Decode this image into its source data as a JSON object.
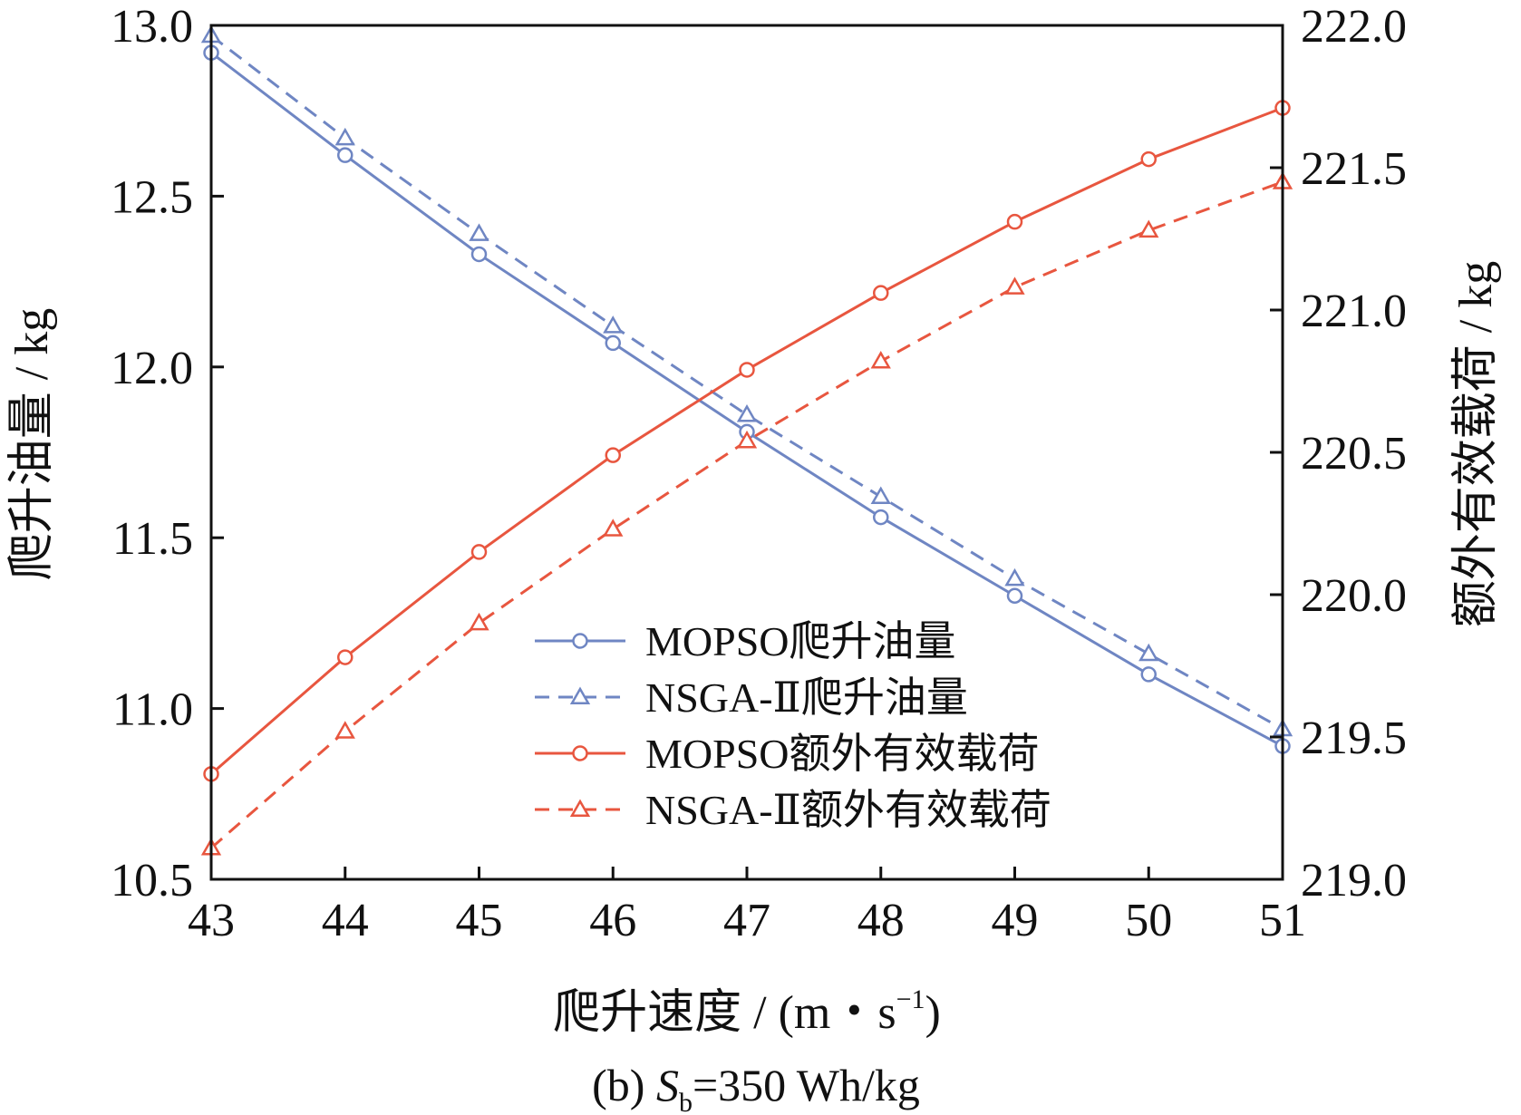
{
  "chart_data": {
    "type": "line",
    "caption": {
      "prefix": "(b) ",
      "var": "S",
      "sub": "b",
      "suffix": "=350 Wh/kg"
    },
    "xlabel": {
      "main": "爬升速度 / (m・s",
      "sup": "−1",
      "close": ")"
    },
    "ylabel_left": "爬升油量 / kg",
    "ylabel_right": "额外有效载荷 / kg",
    "x": [
      43,
      44,
      45,
      46,
      47,
      48,
      49,
      50,
      51
    ],
    "x_ticks": [
      "43",
      "44",
      "45",
      "46",
      "47",
      "48",
      "49",
      "50",
      "51"
    ],
    "xlim": [
      43,
      51
    ],
    "ylim_left": [
      10.5,
      13.0
    ],
    "ylim_right": [
      219.0,
      222.0
    ],
    "y_left_ticks": [
      "10.5",
      "11.0",
      "11.5",
      "12.0",
      "12.5",
      "13.0"
    ],
    "y_right_ticks": [
      "219.0",
      "219.5",
      "220.0",
      "220.5",
      "221.0",
      "221.5",
      "222.0"
    ],
    "legend_position": "lower-center",
    "series": [
      {
        "name": "MOPSO爬升油量",
        "axis": "left",
        "color": "#6f86c3",
        "dash": "solid",
        "marker": "circle",
        "values": [
          12.92,
          12.62,
          12.33,
          12.07,
          11.81,
          11.56,
          11.33,
          11.1,
          10.89
        ]
      },
      {
        "name": "NSGA-Ⅱ爬升油量",
        "axis": "left",
        "color": "#6f86c3",
        "dash": "dashed",
        "marker": "triangle",
        "values": [
          12.97,
          12.67,
          12.39,
          12.12,
          11.86,
          11.62,
          11.38,
          11.16,
          10.94
        ]
      },
      {
        "name": "MOPSO额外有效载荷",
        "axis": "right",
        "color": "#e8563f",
        "dash": "solid",
        "marker": "circle",
        "values": [
          219.37,
          219.78,
          220.15,
          220.49,
          220.79,
          221.06,
          221.31,
          221.53,
          221.71
        ]
      },
      {
        "name": "NSGA-Ⅱ额外有效载荷",
        "axis": "right",
        "color": "#e8563f",
        "dash": "dashed",
        "marker": "triangle",
        "values": [
          219.11,
          219.52,
          219.9,
          220.23,
          220.54,
          220.82,
          221.08,
          221.28,
          221.45
        ]
      }
    ]
  }
}
